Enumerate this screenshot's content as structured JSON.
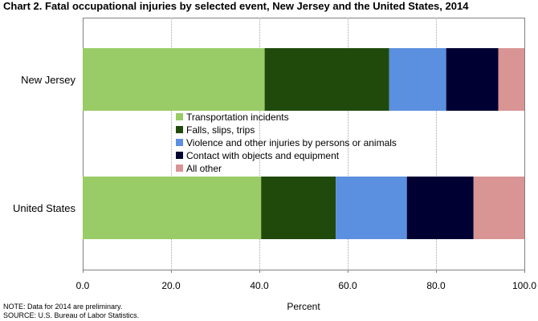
{
  "title": "Chart 2. Fatal occupational injuries by selected event, New Jersey and the United States, 2014",
  "footnotes": {
    "note": "NOTE: Data for 2014 are preliminary.",
    "source": "SOURCE: U.S. Bureau of Labor Statistics."
  },
  "chart_data": {
    "type": "bar",
    "orientation": "horizontal",
    "stacked": true,
    "title": "Chart 2. Fatal occupational injuries by selected event, New Jersey and the United States, 2014",
    "xlabel": "Percent",
    "ylabel": "",
    "xlim": [
      0,
      100
    ],
    "xticks": [
      "0.0",
      "20.0",
      "40.0",
      "60.0",
      "80.0",
      "100.0"
    ],
    "grid": true,
    "legend_position": "center",
    "categories": [
      "New Jersey",
      "United States"
    ],
    "series": [
      {
        "name": "Transportation incidents",
        "color": "#99cc66",
        "values": [
          41.2,
          40.4
        ]
      },
      {
        "name": "Falls, slips, trips",
        "color": "#1f4a0c",
        "values": [
          28.2,
          16.9
        ]
      },
      {
        "name": "Violence and other injuries by persons or animals",
        "color": "#5b8fe0",
        "values": [
          12.9,
          16.1
        ]
      },
      {
        "name": "Contact with objects and equipment",
        "color": "#000033",
        "values": [
          11.8,
          15.1
        ]
      },
      {
        "name": "All other",
        "color": "#d99494",
        "values": [
          5.9,
          11.5
        ]
      }
    ]
  }
}
